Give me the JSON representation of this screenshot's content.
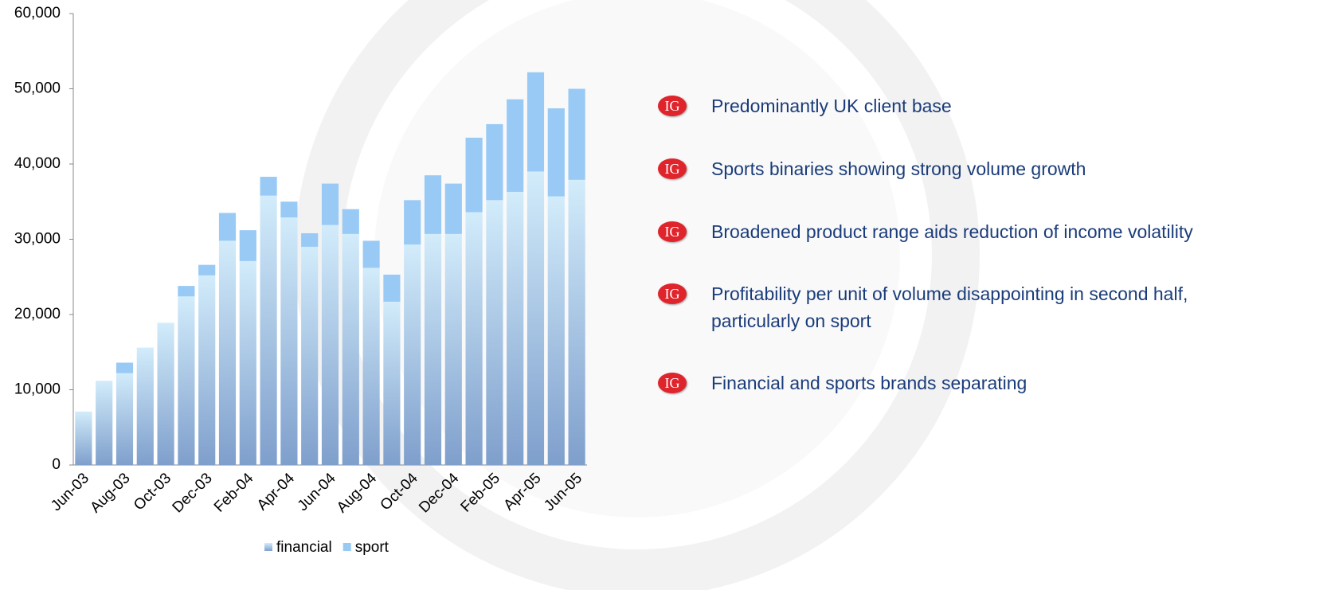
{
  "chart_data": {
    "type": "stacked-bar",
    "categories": [
      "Jun-03",
      null,
      "Aug-03",
      null,
      "Oct-03",
      null,
      "Dec-03",
      null,
      "Feb-04",
      null,
      "Apr-04",
      null,
      "Jun-04",
      null,
      "Aug-04",
      null,
      "Oct-04",
      null,
      "Dec-04",
      null,
      "Feb-05",
      null,
      "Apr-05",
      null,
      "Jun-05"
    ],
    "series": [
      {
        "name": "financial",
        "color": "#7f9fcc",
        "values": [
          7100,
          11200,
          12200,
          15600,
          18900,
          22400,
          25200,
          29800,
          27100,
          35800,
          32900,
          29000,
          31900,
          30700,
          26200,
          21700,
          29300,
          30700,
          30700,
          33600,
          35200,
          36300,
          39000,
          35700,
          37900
        ]
      },
      {
        "name": "sport",
        "color": "#99caf5",
        "values": [
          0,
          0,
          1400,
          0,
          0,
          1400,
          1400,
          3700,
          4100,
          2500,
          2100,
          1800,
          5500,
          3300,
          3600,
          3600,
          5900,
          7800,
          6700,
          9900,
          10100,
          12300,
          13200,
          11700,
          12100
        ]
      }
    ],
    "ylim": [
      0,
      60000
    ],
    "yticks": [
      0,
      {
        "value": 10000,
        "label": "10,000"
      },
      {
        "value": 20000,
        "label": "20,000"
      },
      {
        "value": 30000,
        "label": "30,000"
      },
      {
        "value": 40000,
        "label": "40,000"
      },
      {
        "value": 50000,
        "label": "50,000"
      },
      {
        "value": 60000,
        "label": "60,000"
      }
    ],
    "legend": "bottom"
  },
  "logo_text": "IG",
  "bullets": [
    "Predominantly UK client base",
    "Sports binaries showing strong volume growth",
    "Broadened product range aids reduction of income volatility",
    "Profitability per unit of volume disappointing in second half, particularly on sport",
    "Financial and sports brands separating"
  ]
}
